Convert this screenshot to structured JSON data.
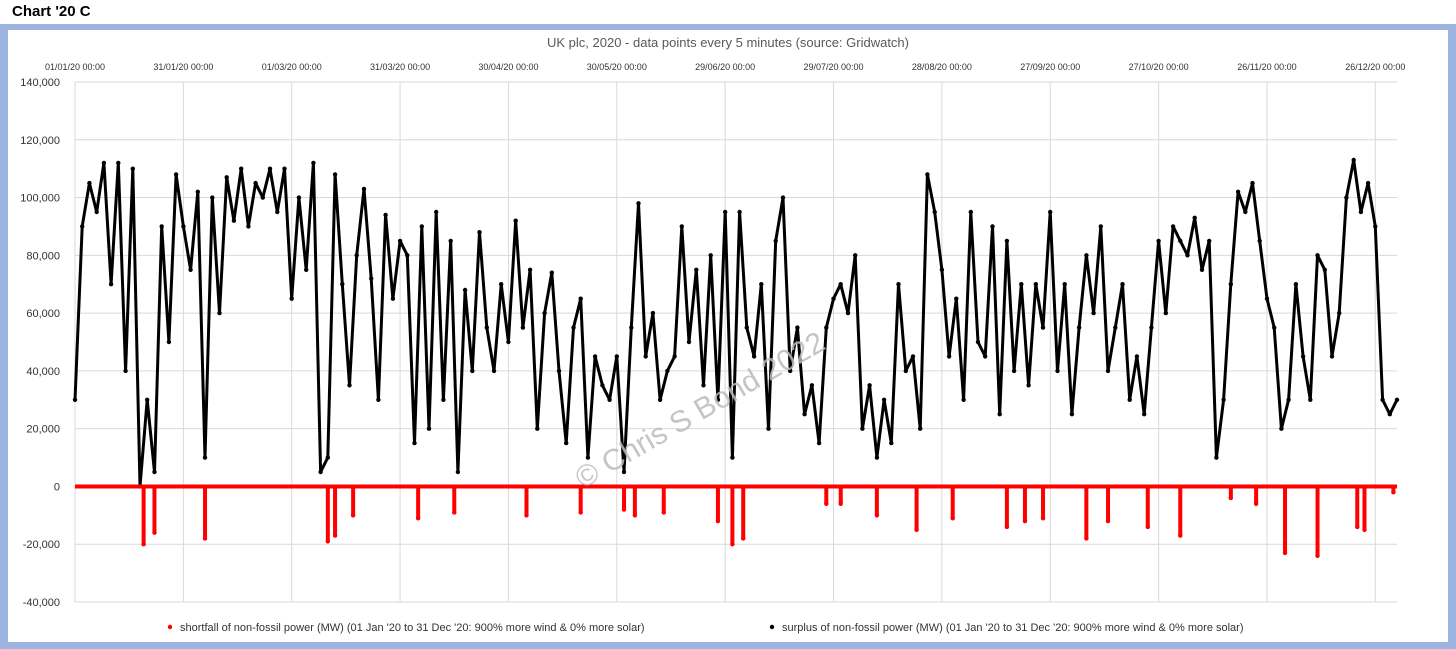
{
  "header": {
    "label": "Chart '20 C"
  },
  "colors": {
    "shortfall": "#ff0000",
    "surplus": "#000000",
    "frame": "#9db4e0",
    "grid": "#d9d9d9"
  },
  "watermark": "© Chris S Bond 2022",
  "chart_data": {
    "type": "scatter",
    "title": "UK plc, 2020 - data points every 5 minutes (source: Gridwatch)",
    "xlabel": "",
    "ylabel": "",
    "x_ticks": [
      "01/01/20 00:00",
      "31/01/20 00:00",
      "01/03/20 00:00",
      "31/03/20 00:00",
      "30/04/20 00:00",
      "30/05/20 00:00",
      "29/06/20 00:00",
      "29/07/20 00:00",
      "28/08/20 00:00",
      "27/09/20 00:00",
      "27/10/20 00:00",
      "26/11/20 00:00",
      "26/12/20 00:00"
    ],
    "y_ticks": [
      "140,000",
      "120,000",
      "100,000",
      "80,000",
      "60,000",
      "40,000",
      "20,000",
      "0",
      "-20,000",
      "-40,000"
    ],
    "ylim": [
      -40000,
      140000
    ],
    "xlim_days": [
      0,
      366
    ],
    "grid": true,
    "legend_position": "bottom",
    "series": [
      {
        "name": "shortfall of non-fossil power (MW) (01 Jan '20 to 31 Dec '20: 900% more wind & 0% more solar)",
        "color": "#ff0000",
        "note": "negative values only",
        "points": [
          [
            19,
            -20000
          ],
          [
            22,
            -16000
          ],
          [
            36,
            -18000
          ],
          [
            70,
            -19000
          ],
          [
            72,
            -17000
          ],
          [
            77,
            -10000
          ],
          [
            95,
            -11000
          ],
          [
            105,
            -9000
          ],
          [
            125,
            -10000
          ],
          [
            140,
            -9000
          ],
          [
            152,
            -8000
          ],
          [
            155,
            -10000
          ],
          [
            163,
            -9000
          ],
          [
            178,
            -12000
          ],
          [
            182,
            -20000
          ],
          [
            185,
            -18000
          ],
          [
            208,
            -6000
          ],
          [
            212,
            -6000
          ],
          [
            222,
            -10000
          ],
          [
            233,
            -15000
          ],
          [
            243,
            -11000
          ],
          [
            258,
            -14000
          ],
          [
            263,
            -12000
          ],
          [
            268,
            -11000
          ],
          [
            280,
            -18000
          ],
          [
            286,
            -12000
          ],
          [
            297,
            -14000
          ],
          [
            306,
            -17000
          ],
          [
            320,
            -4000
          ],
          [
            327,
            -6000
          ],
          [
            335,
            -23000
          ],
          [
            344,
            -24000
          ],
          [
            355,
            -14000
          ],
          [
            357,
            -15000
          ],
          [
            365,
            -2000
          ]
        ]
      },
      {
        "name": "surplus of non-fossil power (MW) (01 Jan '20 to 31 Dec '20: 900% more wind & 0% more solar)",
        "color": "#000000",
        "note": "positive values only",
        "points": [
          [
            0,
            30000
          ],
          [
            2,
            90000
          ],
          [
            4,
            105000
          ],
          [
            6,
            95000
          ],
          [
            8,
            112000
          ],
          [
            10,
            70000
          ],
          [
            12,
            112000
          ],
          [
            14,
            40000
          ],
          [
            16,
            110000
          ],
          [
            18,
            0
          ],
          [
            20,
            30000
          ],
          [
            22,
            5000
          ],
          [
            24,
            90000
          ],
          [
            26,
            50000
          ],
          [
            28,
            108000
          ],
          [
            30,
            90000
          ],
          [
            32,
            75000
          ],
          [
            34,
            102000
          ],
          [
            36,
            10000
          ],
          [
            38,
            100000
          ],
          [
            40,
            60000
          ],
          [
            42,
            107000
          ],
          [
            44,
            92000
          ],
          [
            46,
            110000
          ],
          [
            48,
            90000
          ],
          [
            50,
            105000
          ],
          [
            52,
            100000
          ],
          [
            54,
            110000
          ],
          [
            56,
            95000
          ],
          [
            58,
            110000
          ],
          [
            60,
            65000
          ],
          [
            62,
            100000
          ],
          [
            64,
            75000
          ],
          [
            66,
            112000
          ],
          [
            68,
            5000
          ],
          [
            70,
            10000
          ],
          [
            72,
            108000
          ],
          [
            74,
            70000
          ],
          [
            76,
            35000
          ],
          [
            78,
            80000
          ],
          [
            80,
            103000
          ],
          [
            82,
            72000
          ],
          [
            84,
            30000
          ],
          [
            86,
            94000
          ],
          [
            88,
            65000
          ],
          [
            90,
            85000
          ],
          [
            92,
            80000
          ],
          [
            94,
            15000
          ],
          [
            96,
            90000
          ],
          [
            98,
            20000
          ],
          [
            100,
            95000
          ],
          [
            102,
            30000
          ],
          [
            104,
            85000
          ],
          [
            106,
            5000
          ],
          [
            108,
            68000
          ],
          [
            110,
            40000
          ],
          [
            112,
            88000
          ],
          [
            114,
            55000
          ],
          [
            116,
            40000
          ],
          [
            118,
            70000
          ],
          [
            120,
            50000
          ],
          [
            122,
            92000
          ],
          [
            124,
            55000
          ],
          [
            126,
            75000
          ],
          [
            128,
            20000
          ],
          [
            130,
            60000
          ],
          [
            132,
            74000
          ],
          [
            134,
            40000
          ],
          [
            136,
            15000
          ],
          [
            138,
            55000
          ],
          [
            140,
            65000
          ],
          [
            142,
            10000
          ],
          [
            144,
            45000
          ],
          [
            146,
            35000
          ],
          [
            148,
            30000
          ],
          [
            150,
            45000
          ],
          [
            152,
            5000
          ],
          [
            154,
            55000
          ],
          [
            156,
            98000
          ],
          [
            158,
            45000
          ],
          [
            160,
            60000
          ],
          [
            162,
            30000
          ],
          [
            164,
            40000
          ],
          [
            166,
            45000
          ],
          [
            168,
            90000
          ],
          [
            170,
            50000
          ],
          [
            172,
            75000
          ],
          [
            174,
            35000
          ],
          [
            176,
            80000
          ],
          [
            178,
            30000
          ],
          [
            180,
            95000
          ],
          [
            182,
            10000
          ],
          [
            184,
            95000
          ],
          [
            186,
            55000
          ],
          [
            188,
            45000
          ],
          [
            190,
            70000
          ],
          [
            192,
            20000
          ],
          [
            194,
            85000
          ],
          [
            196,
            100000
          ],
          [
            198,
            40000
          ],
          [
            200,
            55000
          ],
          [
            202,
            25000
          ],
          [
            204,
            35000
          ],
          [
            206,
            15000
          ],
          [
            208,
            55000
          ],
          [
            210,
            65000
          ],
          [
            212,
            70000
          ],
          [
            214,
            60000
          ],
          [
            216,
            80000
          ],
          [
            218,
            20000
          ],
          [
            220,
            35000
          ],
          [
            222,
            10000
          ],
          [
            224,
            30000
          ],
          [
            226,
            15000
          ],
          [
            228,
            70000
          ],
          [
            230,
            40000
          ],
          [
            232,
            45000
          ],
          [
            234,
            20000
          ],
          [
            236,
            108000
          ],
          [
            238,
            95000
          ],
          [
            240,
            75000
          ],
          [
            242,
            45000
          ],
          [
            244,
            65000
          ],
          [
            246,
            30000
          ],
          [
            248,
            95000
          ],
          [
            250,
            50000
          ],
          [
            252,
            45000
          ],
          [
            254,
            90000
          ],
          [
            256,
            25000
          ],
          [
            258,
            85000
          ],
          [
            260,
            40000
          ],
          [
            262,
            70000
          ],
          [
            264,
            35000
          ],
          [
            266,
            70000
          ],
          [
            268,
            55000
          ],
          [
            270,
            95000
          ],
          [
            272,
            40000
          ],
          [
            274,
            70000
          ],
          [
            276,
            25000
          ],
          [
            278,
            55000
          ],
          [
            280,
            80000
          ],
          [
            282,
            60000
          ],
          [
            284,
            90000
          ],
          [
            286,
            40000
          ],
          [
            288,
            55000
          ],
          [
            290,
            70000
          ],
          [
            292,
            30000
          ],
          [
            294,
            45000
          ],
          [
            296,
            25000
          ],
          [
            298,
            55000
          ],
          [
            300,
            85000
          ],
          [
            302,
            60000
          ],
          [
            304,
            90000
          ],
          [
            306,
            85000
          ],
          [
            308,
            80000
          ],
          [
            310,
            93000
          ],
          [
            312,
            75000
          ],
          [
            314,
            85000
          ],
          [
            316,
            10000
          ],
          [
            318,
            30000
          ],
          [
            320,
            70000
          ],
          [
            322,
            102000
          ],
          [
            324,
            95000
          ],
          [
            326,
            105000
          ],
          [
            328,
            85000
          ],
          [
            330,
            65000
          ],
          [
            332,
            55000
          ],
          [
            334,
            20000
          ],
          [
            336,
            30000
          ],
          [
            338,
            70000
          ],
          [
            340,
            45000
          ],
          [
            342,
            30000
          ],
          [
            344,
            80000
          ],
          [
            346,
            75000
          ],
          [
            348,
            45000
          ],
          [
            350,
            60000
          ],
          [
            352,
            100000
          ],
          [
            354,
            113000
          ],
          [
            356,
            95000
          ],
          [
            358,
            105000
          ],
          [
            360,
            90000
          ],
          [
            362,
            30000
          ],
          [
            364,
            25000
          ],
          [
            366,
            30000
          ]
        ]
      }
    ]
  },
  "legend": {
    "shortfall_label": "shortfall of non-fossil power (MW) (01 Jan '20 to 31 Dec '20: 900% more wind & 0% more solar)",
    "surplus_label": "surplus of non-fossil power (MW) (01 Jan '20 to 31 Dec '20: 900% more wind & 0% more solar)"
  }
}
